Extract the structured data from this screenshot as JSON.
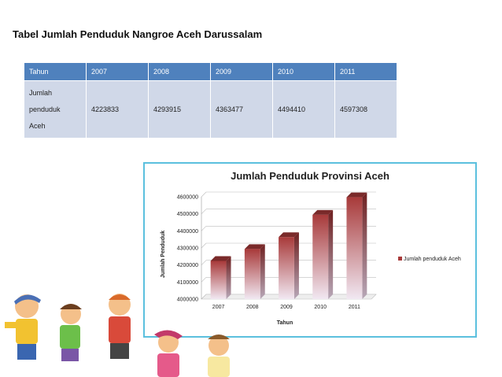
{
  "page_title": "Tabel Jumlah Penduduk Nangroe Aceh Darussalam",
  "table": {
    "header": [
      "Tahun",
      "2007",
      "2008",
      "2009",
      "2010",
      "2011"
    ],
    "row_label_lines": [
      "Jumlah",
      "penduduk",
      "Aceh"
    ],
    "row_values": [
      "4223833",
      "4293915",
      "4363477",
      "4494410",
      "4597308"
    ]
  },
  "chart_data": {
    "type": "bar",
    "title": "Jumlah Penduduk Provinsi Aceh",
    "xlabel": "Tahun",
    "ylabel": "Jumlah Penduduk",
    "categories": [
      "2007",
      "2008",
      "2009",
      "2010",
      "2011"
    ],
    "series": [
      {
        "name": "Jumlah penduduk Aceh",
        "values": [
          4223833,
          4293915,
          4363477,
          4494410,
          4597308
        ]
      }
    ],
    "ylim": [
      4000000,
      4600000
    ],
    "yticks": [
      "4000000",
      "4100000",
      "4200000",
      "4300000",
      "4400000",
      "4500000",
      "4600000"
    ],
    "grid": true,
    "legend": "right",
    "bar_color": "#a83a3a"
  }
}
